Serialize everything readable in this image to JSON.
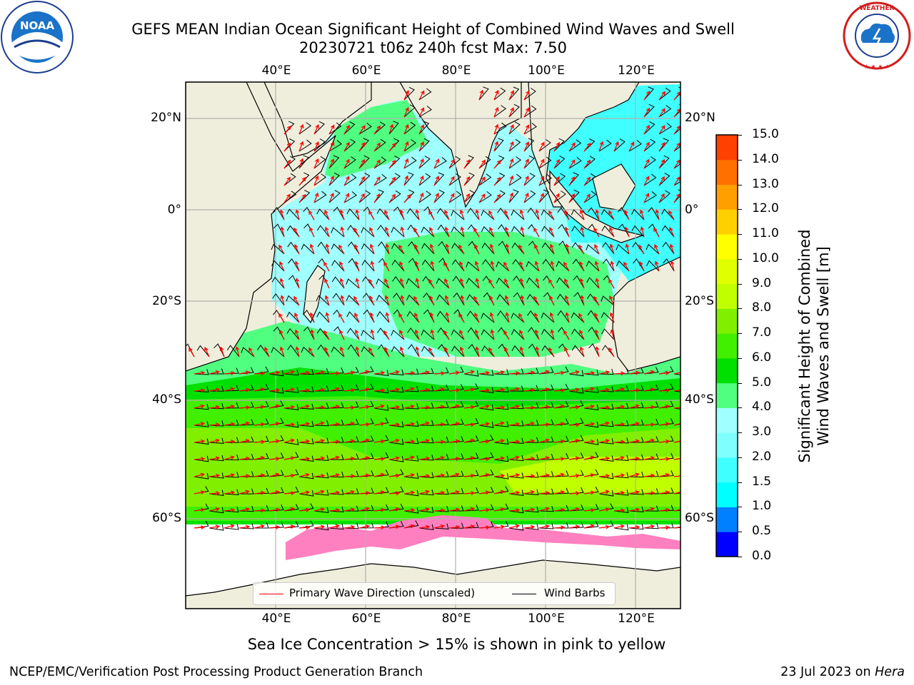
{
  "header": {
    "title_line1": "GEFS MEAN Indian Ocean Significant Height of Combined Wind Waves and Swell",
    "title_line2": "20230721 t06z 240h fcst   Max: 7.50"
  },
  "logos": {
    "left": {
      "text": "NOAA",
      "ring_text": "NATIONAL OCEANIC AND ATMOSPHERIC ADMINISTRATION · U.S. DEPARTMENT OF COMMERCE",
      "icon": "noaa-logo"
    },
    "right": {
      "ring_text": "NATIONAL WEATHER SERVICE",
      "icon": "nws-logo"
    }
  },
  "map": {
    "lon_labels": [
      "40°E",
      "60°E",
      "80°E",
      "100°E",
      "120°E"
    ],
    "lon_values": [
      40,
      60,
      80,
      100,
      120
    ],
    "lat_labels": [
      "20°N",
      "0°",
      "20°S",
      "40°S",
      "60°S"
    ],
    "lat_values": [
      20,
      0,
      -20,
      -40,
      -60
    ],
    "lon_range": [
      20,
      130
    ],
    "lat_range": [
      -78,
      28
    ],
    "grid": true,
    "colors": {
      "land": "#efeedc",
      "ice_free": "#ffffff",
      "grid": "#b0b0b0",
      "coast": "#000000",
      "wave_arrow": "#ff0000",
      "barb": "#000000"
    }
  },
  "legend": {
    "items": [
      {
        "label": "Primary Wave Direction (unscaled)",
        "color": "#ff0000"
      },
      {
        "label": "Wind Barbs",
        "color": "#000000"
      }
    ]
  },
  "colorbar": {
    "label": "Significant Height of Combined\nWind Waves and Swell [m]",
    "label_line1": "Significant Height of Combined",
    "label_line2": "Wind Waves and Swell [m]",
    "ticks": [
      "0.0",
      "0.5",
      "1.0",
      "1.5",
      "2.0",
      "3.0",
      "4.0",
      "5.0",
      "6.0",
      "7.0",
      "8.0",
      "9.0",
      "10.0",
      "11.0",
      "12.0",
      "13.0",
      "14.0",
      "15.0"
    ],
    "colors": [
      "#0000ff",
      "#0080ff",
      "#00ffff",
      "#40ffff",
      "#80ffff",
      "#a0ffff",
      "#50ff80",
      "#00e000",
      "#40f000",
      "#80f000",
      "#c0ff00",
      "#e0ff00",
      "#ffff00",
      "#ffd000",
      "#ffa000",
      "#ff7000",
      "#ff4000",
      "#ff0000"
    ]
  },
  "footer": {
    "note": "Sea Ice Concentration > 15% is shown in pink to yellow",
    "left": "NCEP/EMC/Verification Post Processing Product Generation Branch",
    "right_prefix": "23 Jul 2023 on ",
    "right_host": "Hera"
  }
}
